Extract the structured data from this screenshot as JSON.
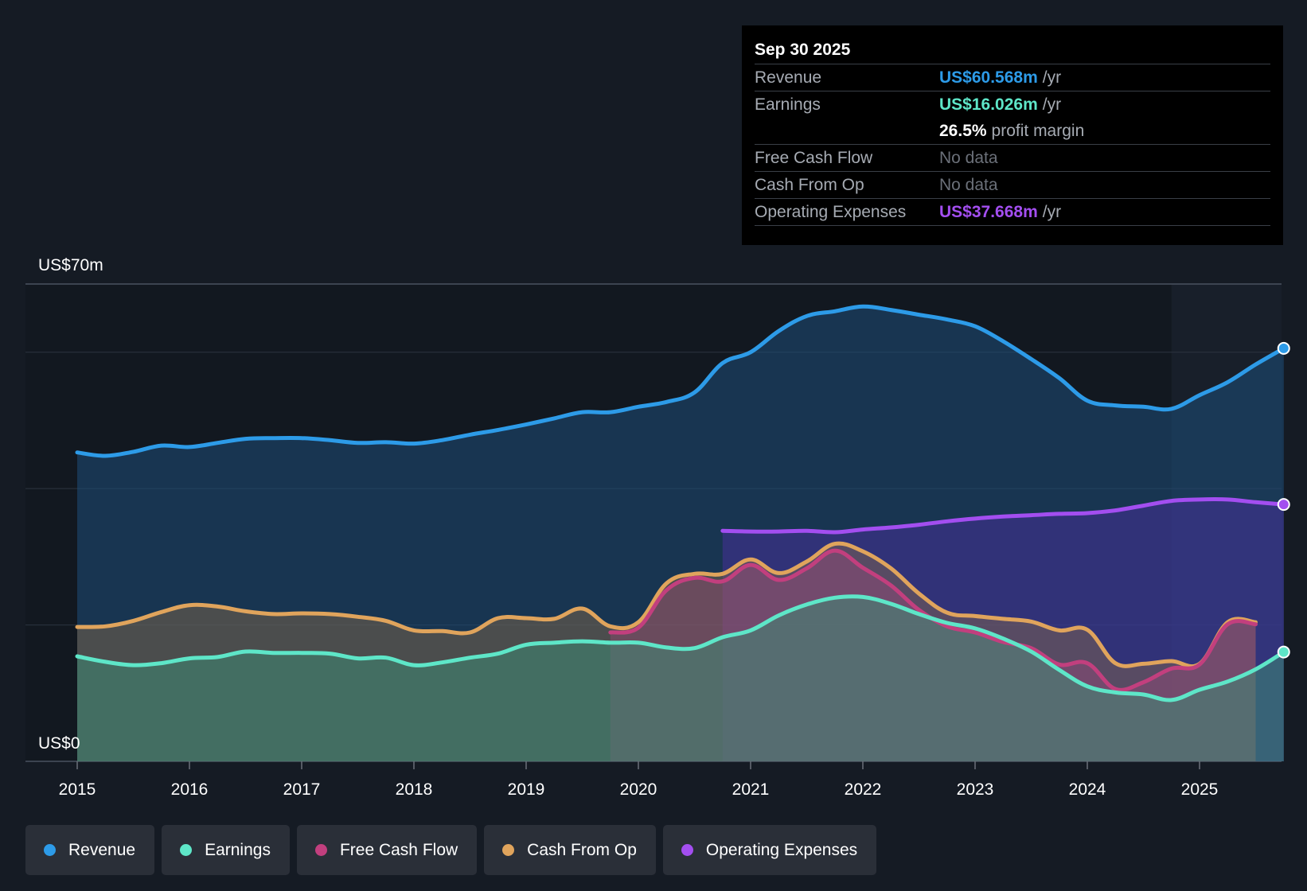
{
  "tooltip": {
    "date": "Sep 30 2025",
    "rows": [
      {
        "label": "Revenue",
        "value": "US$60.568m",
        "unit": "/yr",
        "color": "#2d9be8"
      },
      {
        "label": "Earnings",
        "value": "US$16.026m",
        "unit": "/yr",
        "color": "#5ee6c8"
      },
      {
        "label": "",
        "value": "26.5%",
        "unit": "profit margin",
        "color": "#ffffff"
      },
      {
        "label": "Free Cash Flow",
        "value": "No data",
        "unit": "",
        "color": "#6b7079"
      },
      {
        "label": "Cash From Op",
        "value": "No data",
        "unit": "",
        "color": "#6b7079"
      },
      {
        "label": "Operating Expenses",
        "value": "US$37.668m",
        "unit": "/yr",
        "color": "#a34ef0"
      }
    ]
  },
  "legend": [
    {
      "label": "Revenue",
      "color": "#2d9be8"
    },
    {
      "label": "Earnings",
      "color": "#5ee6c8"
    },
    {
      "label": "Free Cash Flow",
      "color": "#c23f7e"
    },
    {
      "label": "Cash From Op",
      "color": "#e0a45c"
    },
    {
      "label": "Operating Expenses",
      "color": "#a34ef0"
    }
  ],
  "chart_data": {
    "type": "area",
    "title": "",
    "xlabel": "",
    "ylabel": "",
    "y_top_label": "US$70m",
    "y_bottom_label": "US$0",
    "ylim": [
      0,
      70
    ],
    "xlim": [
      2015,
      2025.75
    ],
    "x_ticks": [
      "2015",
      "2016",
      "2017",
      "2018",
      "2019",
      "2020",
      "2021",
      "2022",
      "2023",
      "2024",
      "2025"
    ],
    "forecast_start": 2024.75,
    "series": [
      {
        "name": "Revenue",
        "color": "#2d9be8",
        "x": [
          2015.0,
          2015.25,
          2015.5,
          2015.75,
          2016.0,
          2016.25,
          2016.5,
          2016.75,
          2017.0,
          2017.25,
          2017.5,
          2017.75,
          2018.0,
          2018.25,
          2018.5,
          2018.75,
          2019.0,
          2019.25,
          2019.5,
          2019.75,
          2020.0,
          2020.25,
          2020.5,
          2020.75,
          2021.0,
          2021.25,
          2021.5,
          2021.75,
          2022.0,
          2022.25,
          2022.5,
          2022.75,
          2023.0,
          2023.25,
          2023.5,
          2023.75,
          2024.0,
          2024.25,
          2024.5,
          2024.75,
          2025.0,
          2025.25,
          2025.5,
          2025.75
        ],
        "values": [
          45.3,
          44.8,
          45.4,
          46.3,
          46.1,
          46.7,
          47.3,
          47.4,
          47.4,
          47.1,
          46.7,
          46.8,
          46.6,
          47.1,
          47.9,
          48.6,
          49.4,
          50.3,
          51.2,
          51.2,
          52.0,
          52.7,
          54.1,
          58.4,
          60.0,
          63.1,
          65.3,
          66.0,
          66.7,
          66.2,
          65.5,
          64.8,
          63.8,
          61.6,
          59.0,
          56.2,
          52.9,
          52.2,
          52.0,
          51.7,
          53.7,
          55.6,
          58.2,
          60.568
        ]
      },
      {
        "name": "Earnings",
        "color": "#5ee6c8",
        "x": [
          2015.0,
          2015.25,
          2015.5,
          2015.75,
          2016.0,
          2016.25,
          2016.5,
          2016.75,
          2017.0,
          2017.25,
          2017.5,
          2017.75,
          2018.0,
          2018.25,
          2018.5,
          2018.75,
          2019.0,
          2019.25,
          2019.5,
          2019.75,
          2020.0,
          2020.25,
          2020.5,
          2020.75,
          2021.0,
          2021.25,
          2021.5,
          2021.75,
          2022.0,
          2022.25,
          2022.5,
          2022.75,
          2023.0,
          2023.25,
          2023.5,
          2023.75,
          2024.0,
          2024.25,
          2024.5,
          2024.75,
          2025.0,
          2025.25,
          2025.5,
          2025.75
        ],
        "values": [
          15.4,
          14.6,
          14.1,
          14.4,
          15.1,
          15.3,
          16.1,
          15.9,
          15.9,
          15.8,
          15.1,
          15.2,
          14.1,
          14.5,
          15.2,
          15.8,
          17.1,
          17.4,
          17.6,
          17.4,
          17.4,
          16.7,
          16.6,
          18.2,
          19.2,
          21.4,
          23.0,
          24.0,
          24.1,
          23.1,
          21.6,
          20.3,
          19.5,
          18.0,
          16.1,
          13.4,
          11.0,
          10.1,
          9.8,
          9.0,
          10.5,
          11.7,
          13.5,
          16.026
        ]
      },
      {
        "name": "Free Cash Flow",
        "color": "#c23f7e",
        "x": [
          2019.75,
          2020.0,
          2020.25,
          2020.5,
          2020.75,
          2021.0,
          2021.25,
          2021.5,
          2021.75,
          2022.0,
          2022.25,
          2022.5,
          2022.75,
          2023.0,
          2023.25,
          2023.5,
          2023.75,
          2024.0,
          2024.25,
          2024.5,
          2024.75,
          2025.0,
          2025.25,
          2025.5
        ],
        "values": [
          18.9,
          19.6,
          25.1,
          26.9,
          26.4,
          28.8,
          26.6,
          28.3,
          30.9,
          28.4,
          25.8,
          22.2,
          19.8,
          18.9,
          17.5,
          16.6,
          14.2,
          14.4,
          10.6,
          11.6,
          13.6,
          14.2,
          20.1,
          20.1
        ]
      },
      {
        "name": "Cash From Op",
        "color": "#e0a45c",
        "x": [
          2015.0,
          2015.25,
          2015.5,
          2015.75,
          2016.0,
          2016.25,
          2016.5,
          2016.75,
          2017.0,
          2017.25,
          2017.5,
          2017.75,
          2018.0,
          2018.25,
          2018.5,
          2018.75,
          2019.0,
          2019.25,
          2019.5,
          2019.75,
          2020.0,
          2020.25,
          2020.5,
          2020.75,
          2021.0,
          2021.25,
          2021.5,
          2021.75,
          2022.0,
          2022.25,
          2022.5,
          2022.75,
          2023.0,
          2023.25,
          2023.5,
          2023.75,
          2024.0,
          2024.25,
          2024.5,
          2024.75,
          2025.0,
          2025.25,
          2025.5
        ],
        "values": [
          19.7,
          19.8,
          20.6,
          21.9,
          22.9,
          22.7,
          22.0,
          21.6,
          21.7,
          21.6,
          21.2,
          20.6,
          19.2,
          19.1,
          18.9,
          21.0,
          21.0,
          20.9,
          22.4,
          19.8,
          20.4,
          26.1,
          27.5,
          27.5,
          29.6,
          27.6,
          29.3,
          31.9,
          30.8,
          28.3,
          24.6,
          21.8,
          21.3,
          20.9,
          20.5,
          19.2,
          19.3,
          14.4,
          14.3,
          14.7,
          14.3,
          20.4,
          20.4
        ]
      },
      {
        "name": "Operating Expenses",
        "color": "#a34ef0",
        "x": [
          2020.75,
          2021.0,
          2021.25,
          2021.5,
          2021.75,
          2022.0,
          2022.25,
          2022.5,
          2022.75,
          2023.0,
          2023.25,
          2023.5,
          2023.75,
          2024.0,
          2024.25,
          2024.5,
          2024.75,
          2025.0,
          2025.25,
          2025.5,
          2025.75
        ],
        "values": [
          33.8,
          33.7,
          33.7,
          33.8,
          33.6,
          34.0,
          34.3,
          34.7,
          35.2,
          35.6,
          35.9,
          36.1,
          36.3,
          36.4,
          36.8,
          37.5,
          38.2,
          38.4,
          38.4,
          38.0,
          37.668
        ]
      }
    ]
  }
}
